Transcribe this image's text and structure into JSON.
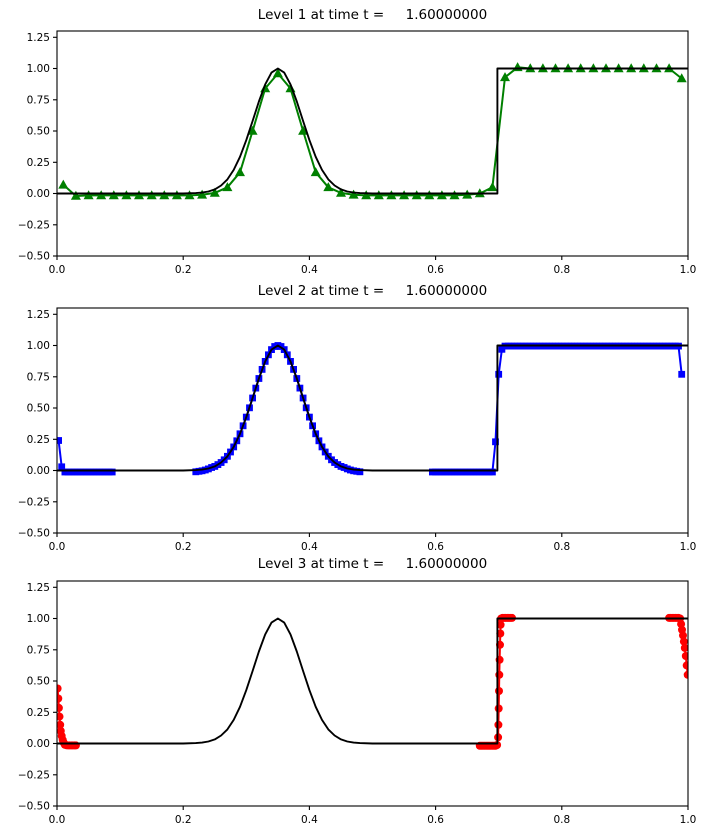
{
  "figure": {
    "background": "#ffffff"
  },
  "chart_data": {
    "type": "line",
    "time_value": "1.60000000",
    "axis": {
      "xlim": [
        0.0,
        1.0
      ],
      "ylim": [
        -0.5,
        1.3
      ],
      "grid": false,
      "legend": "none",
      "x_ticks": [
        {
          "v": 0.0,
          "label": "0.0"
        },
        {
          "v": 0.2,
          "label": "0.2"
        },
        {
          "v": 0.4,
          "label": "0.4"
        },
        {
          "v": 0.6,
          "label": "0.6"
        },
        {
          "v": 0.8,
          "label": "0.8"
        },
        {
          "v": 1.0,
          "label": "1.0"
        }
      ],
      "y_ticks": [
        {
          "v": 1.25,
          "label": "1.25"
        },
        {
          "v": 1.0,
          "label": "1.00"
        },
        {
          "v": 0.75,
          "label": "0.75"
        },
        {
          "v": 0.5,
          "label": "0.50"
        },
        {
          "v": 0.25,
          "label": "0.25"
        },
        {
          "v": 0.0,
          "label": "0.00"
        },
        {
          "v": -0.25,
          "label": "−0.25"
        },
        {
          "v": -0.5,
          "label": "−0.50"
        }
      ]
    },
    "exact_solution": {
      "name": "exact-solution-line",
      "color": "#000000",
      "points": [
        [
          0.0,
          0.0
        ],
        [
          0.2,
          0.0
        ],
        [
          0.22,
          0.003
        ],
        [
          0.23,
          0.007
        ],
        [
          0.24,
          0.016
        ],
        [
          0.25,
          0.033
        ],
        [
          0.26,
          0.064
        ],
        [
          0.27,
          0.113
        ],
        [
          0.28,
          0.189
        ],
        [
          0.29,
          0.294
        ],
        [
          0.3,
          0.427
        ],
        [
          0.31,
          0.58
        ],
        [
          0.32,
          0.736
        ],
        [
          0.33,
          0.873
        ],
        [
          0.34,
          0.967
        ],
        [
          0.35,
          1.0
        ],
        [
          0.36,
          0.967
        ],
        [
          0.37,
          0.873
        ],
        [
          0.38,
          0.736
        ],
        [
          0.39,
          0.58
        ],
        [
          0.4,
          0.427
        ],
        [
          0.41,
          0.294
        ],
        [
          0.42,
          0.189
        ],
        [
          0.43,
          0.113
        ],
        [
          0.44,
          0.064
        ],
        [
          0.45,
          0.033
        ],
        [
          0.46,
          0.016
        ],
        [
          0.47,
          0.007
        ],
        [
          0.48,
          0.003
        ],
        [
          0.5,
          0.0
        ],
        [
          0.698,
          0.0
        ],
        [
          0.698,
          1.0
        ],
        [
          1.0,
          1.0
        ]
      ]
    },
    "subplots": [
      {
        "level": 1,
        "title": "Level 1 at time t =     1.60000000",
        "marker": "triangle",
        "color": "#008000",
        "segments": [
          {
            "x0": 0.01,
            "dx": 0.02,
            "y": [
              0.07,
              -0.02,
              -0.015,
              -0.015,
              -0.015,
              -0.015,
              -0.015,
              -0.015,
              -0.015,
              -0.015,
              -0.015,
              -0.01,
              0.005,
              0.05,
              0.17,
              0.5,
              0.84,
              0.96,
              0.84,
              0.5,
              0.17,
              0.05,
              0.005,
              -0.01,
              -0.015,
              -0.015,
              -0.015,
              -0.015,
              -0.015,
              -0.015,
              -0.015,
              -0.015,
              -0.01,
              0.0,
              0.05,
              0.93,
              1.01,
              1.0,
              1.0,
              1.0,
              1.0,
              1.0,
              1.0,
              1.0,
              1.0,
              1.0,
              1.0,
              1.0,
              1.0,
              0.92
            ]
          }
        ]
      },
      {
        "level": 2,
        "title": "Level 2 at time t =     1.60000000",
        "marker": "square",
        "color": "#0000ff",
        "segments": [
          {
            "x0": 0.0025,
            "dx": 0.005,
            "runs": [
              [
                1,
                0.24
              ],
              [
                1,
                0.03
              ],
              [
                16,
                -0.012
              ]
            ]
          },
          {
            "x0": 0.22,
            "dx": 0.005,
            "y": [
              -0.01,
              -0.006,
              -0.002,
              0.004,
              0.013,
              0.024,
              0.033,
              0.047,
              0.064,
              0.086,
              0.114,
              0.148,
              0.189,
              0.238,
              0.294,
              0.358,
              0.427,
              0.502,
              0.58,
              0.659,
              0.736,
              0.809,
              0.873,
              0.926,
              0.967,
              0.992,
              1.0,
              0.992,
              0.967,
              0.926,
              0.873,
              0.809,
              0.736,
              0.659,
              0.58,
              0.502,
              0.427,
              0.358,
              0.294,
              0.238,
              0.189,
              0.148,
              0.114,
              0.086,
              0.064,
              0.047,
              0.033,
              0.024,
              0.013,
              0.004,
              -0.002,
              -0.006,
              -0.01
            ]
          },
          {
            "x0": 0.595,
            "dx": 0.005,
            "runs": [
              [
                20,
                -0.012
              ],
              [
                1,
                0.23
              ],
              [
                1,
                0.77
              ],
              [
                1,
                0.97
              ],
              [
                56,
                0.995
              ],
              [
                1,
                0.77
              ]
            ]
          }
        ]
      },
      {
        "level": 3,
        "title": "Level 3 at time t =     1.60000000",
        "marker": "circle",
        "color": "#ff0000",
        "segments": [
          {
            "points": [
              [
                0.001,
                0.44
              ],
              [
                0.002,
                0.36
              ],
              [
                0.003,
                0.285
              ],
              [
                0.004,
                0.215
              ],
              [
                0.005,
                0.15
              ],
              [
                0.006,
                0.1
              ],
              [
                0.0075,
                0.06
              ],
              [
                0.009,
                0.03
              ],
              [
                0.01,
                0.012
              ],
              [
                0.0113,
                0.002
              ],
              [
                0.0125,
                -0.01
              ],
              [
                0.015,
                -0.014
              ],
              [
                0.0175,
                -0.015
              ],
              [
                0.02,
                -0.015
              ],
              [
                0.0225,
                -0.015
              ],
              [
                0.025,
                -0.015
              ],
              [
                0.0275,
                -0.015
              ],
              [
                0.03,
                -0.015
              ]
            ]
          },
          {
            "points": [
              [
                0.67,
                -0.018
              ],
              [
                0.6725,
                -0.018
              ],
              [
                0.675,
                -0.018
              ],
              [
                0.6775,
                -0.018
              ],
              [
                0.68,
                -0.018
              ],
              [
                0.6825,
                -0.018
              ],
              [
                0.685,
                -0.018
              ],
              [
                0.6875,
                -0.018
              ],
              [
                0.69,
                -0.018
              ],
              [
                0.6925,
                -0.018
              ],
              [
                0.695,
                -0.018
              ],
              [
                0.6975,
                -0.012
              ],
              [
                0.699,
                0.05
              ],
              [
                0.6995,
                0.15
              ],
              [
                0.7,
                0.28
              ],
              [
                0.7005,
                0.42
              ],
              [
                0.701,
                0.55
              ],
              [
                0.7015,
                0.67
              ],
              [
                0.702,
                0.79
              ],
              [
                0.7025,
                0.88
              ],
              [
                0.703,
                0.95
              ],
              [
                0.704,
                1.0
              ],
              [
                0.706,
                1.005
              ],
              [
                0.7085,
                1.005
              ],
              [
                0.711,
                1.005
              ],
              [
                0.7135,
                1.005
              ],
              [
                0.716,
                1.005
              ],
              [
                0.7185,
                1.005
              ],
              [
                0.721,
                1.005
              ]
            ]
          },
          {
            "points": [
              [
                0.97,
                1.005
              ],
              [
                0.9725,
                1.005
              ],
              [
                0.975,
                1.005
              ],
              [
                0.9775,
                1.005
              ],
              [
                0.98,
                1.005
              ],
              [
                0.9825,
                1.005
              ],
              [
                0.985,
                1.005
              ],
              [
                0.9875,
                1.0
              ],
              [
                0.989,
                0.955
              ],
              [
                0.9905,
                0.91
              ],
              [
                0.992,
                0.865
              ],
              [
                0.9935,
                0.815
              ],
              [
                0.995,
                0.765
              ],
              [
                0.9965,
                0.7
              ],
              [
                0.998,
                0.625
              ],
              [
                0.9995,
                0.55
              ]
            ]
          }
        ]
      }
    ]
  }
}
